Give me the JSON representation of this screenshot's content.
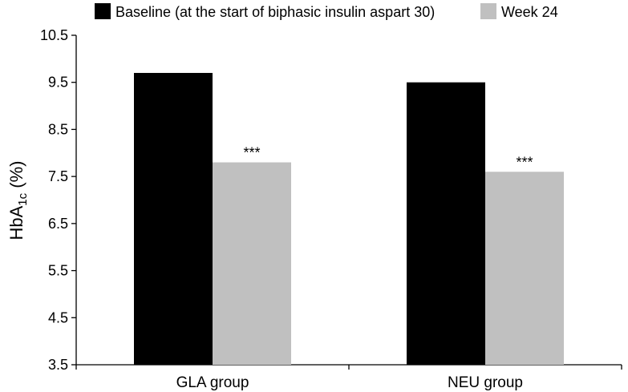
{
  "chart_data": {
    "type": "bar",
    "categories": [
      "GLA group",
      "NEU group"
    ],
    "series": [
      {
        "name": "Baseline (at the start of biphasic insulin aspart 30)",
        "values": [
          9.7,
          9.5
        ],
        "color": "#000000"
      },
      {
        "name": "Week 24",
        "values": [
          7.8,
          7.6
        ],
        "color": "#c0c0c0"
      }
    ],
    "annotations": [
      "***",
      "***"
    ],
    "ylabel": {
      "main": "HbA",
      "sub": "1c",
      "unit": " (%)"
    },
    "ylim": [
      3.5,
      10.5
    ],
    "yticks": [
      "3.5",
      "4.5",
      "5.5",
      "6.5",
      "7.5",
      "8.5",
      "9.5",
      "10.5"
    ],
    "grid": false,
    "legend_position": "top"
  }
}
